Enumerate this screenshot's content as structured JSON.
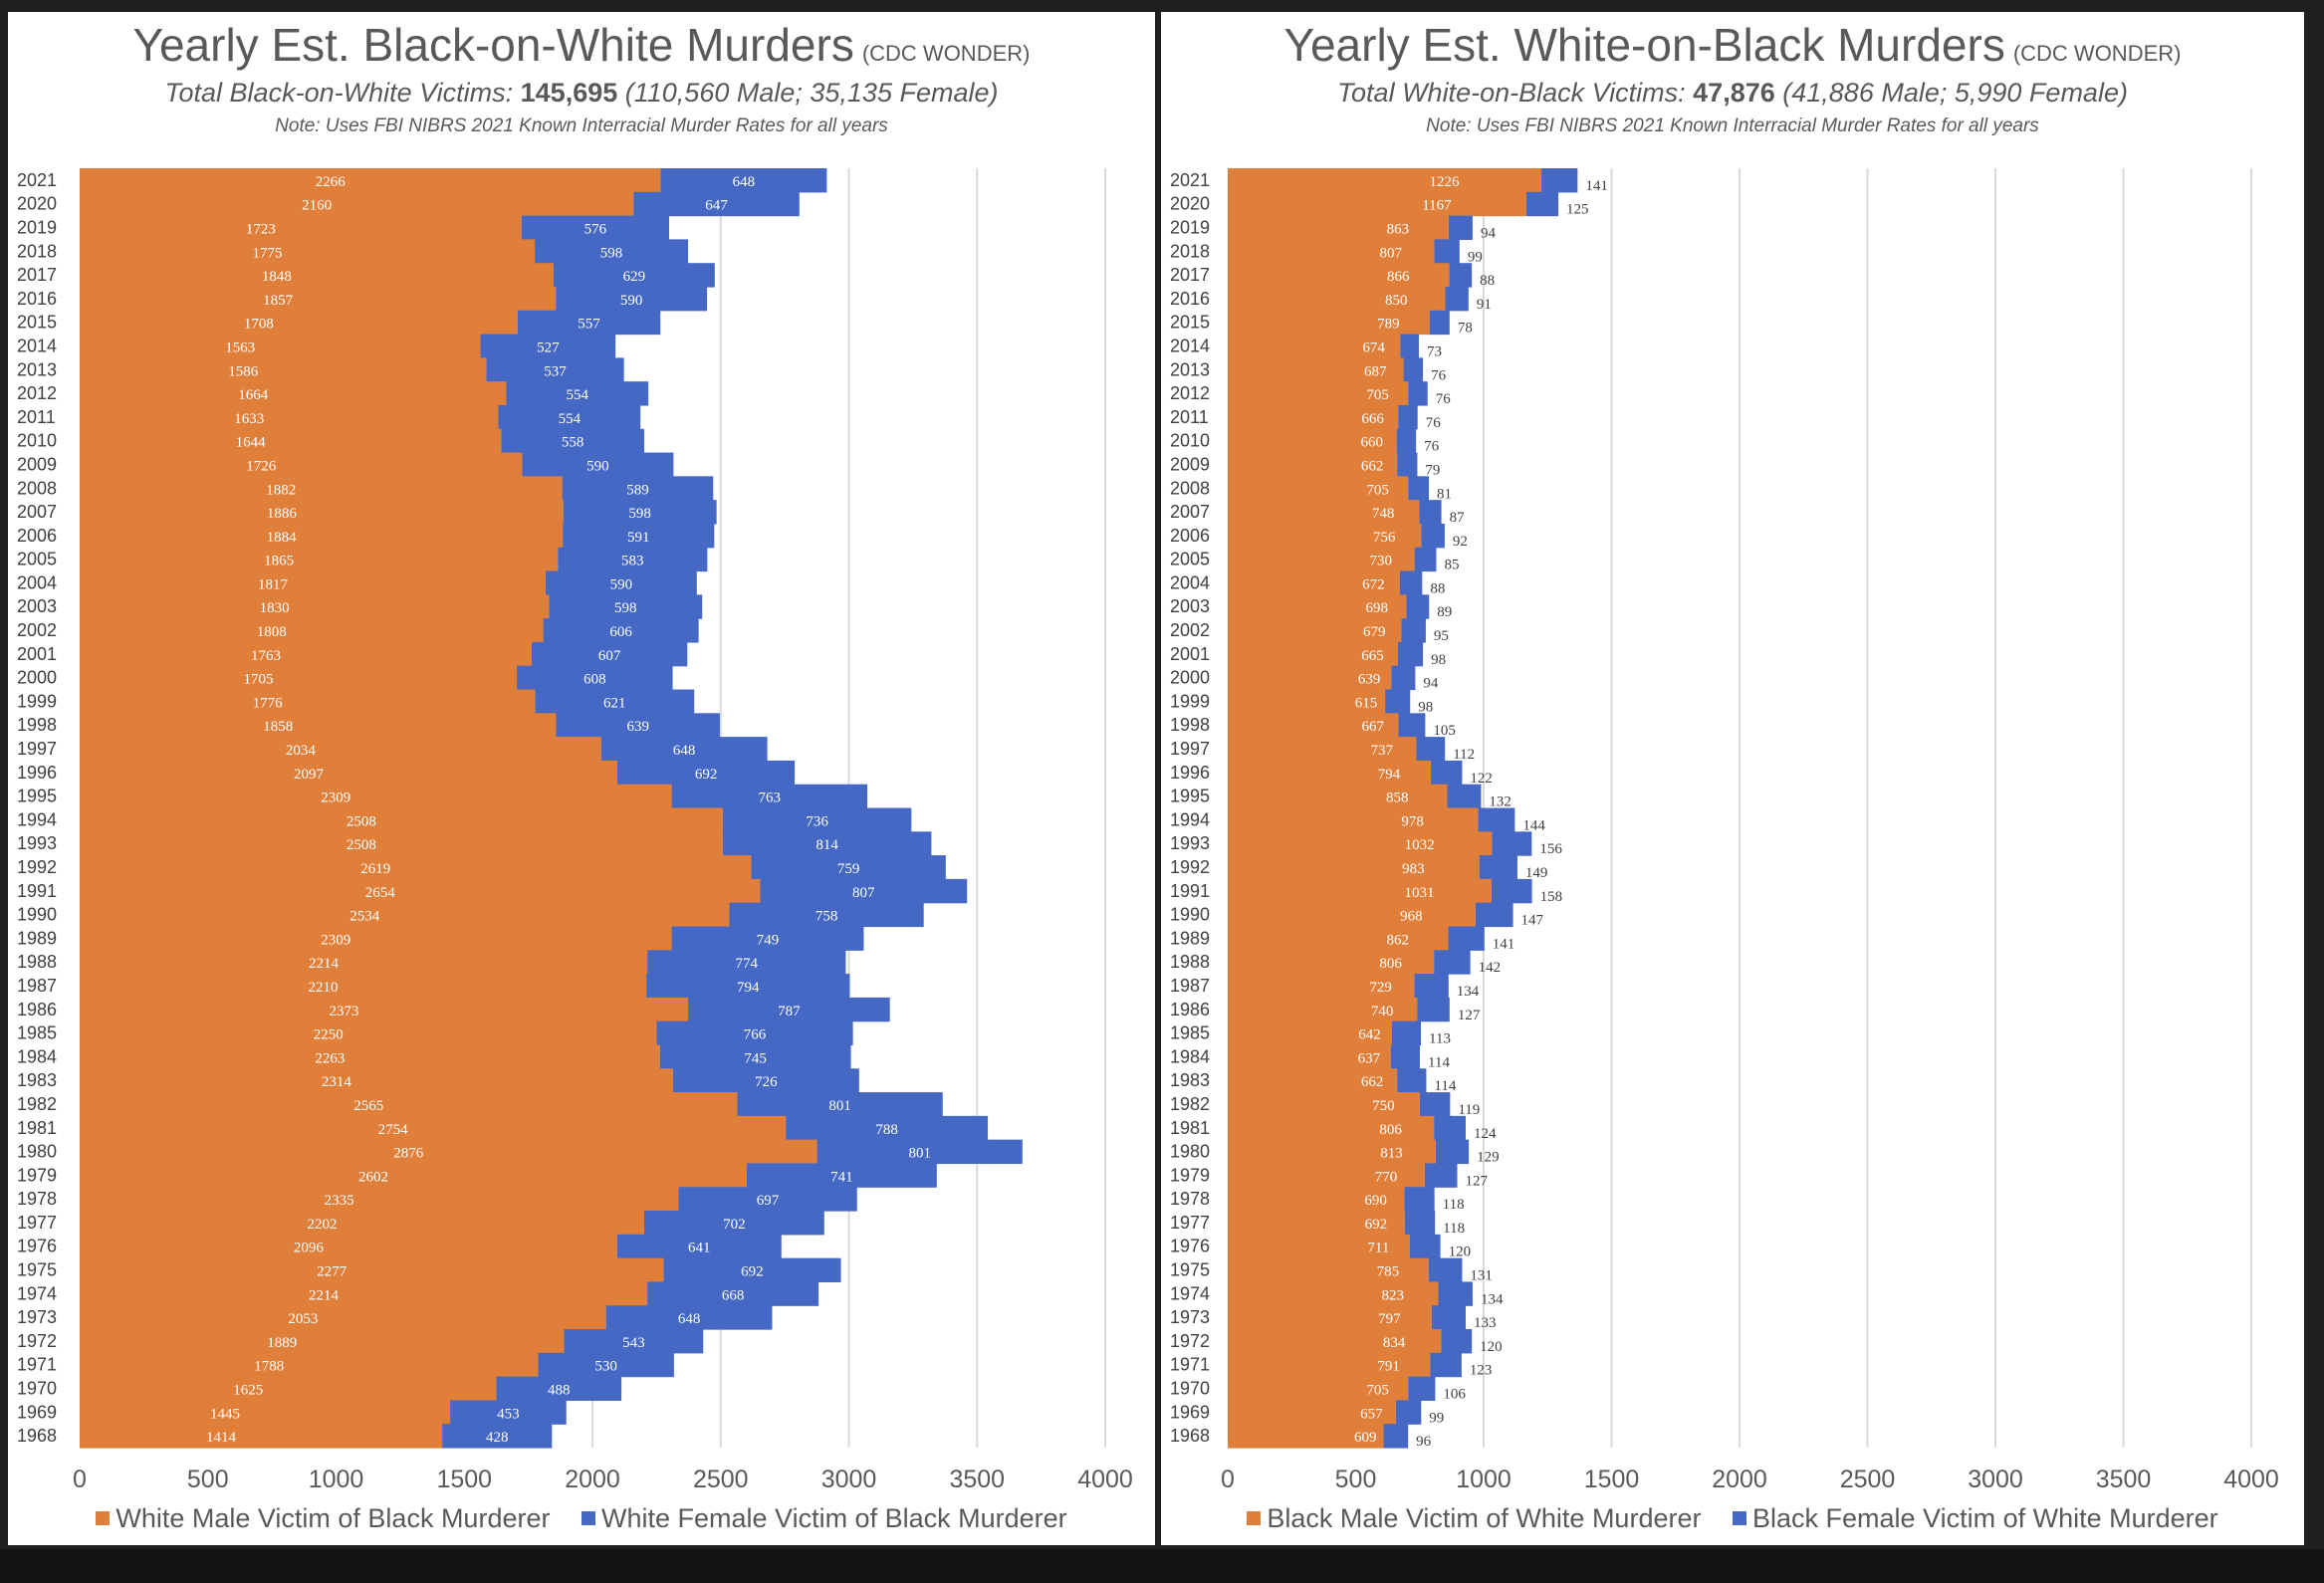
{
  "colors": {
    "orange": "#E07F3A",
    "blue": "#4468C4",
    "grid": "#D9D9D9",
    "text": "#595959"
  },
  "panels": [
    {
      "title": "Yearly Est. Black-on-White Murders",
      "source": "(CDC WONDER)",
      "subtitle_italic": "Total Black-on-White Victims:",
      "subtitle_total": "145,695",
      "subtitle_breakdown": "(110,560 Male; 35,135 Female)",
      "note": "Note: Uses FBI NIBRS 2021 Known Interracial Murder Rates for all years",
      "legend_male": "White Male Victim of Black Murderer",
      "legend_female": "White Female Victim of Black Murderer"
    },
    {
      "title": "Yearly Est. White-on-Black Murders",
      "source": "(CDC WONDER)",
      "subtitle_italic": "Total White-on-Black Victims:",
      "subtitle_total": "47,876",
      "subtitle_breakdown": "(41,886 Male; 5,990 Female)",
      "note": "Note: Uses FBI NIBRS 2021 Known Interracial Murder Rates for all years",
      "legend_male": "Black Male Victim of White Murderer",
      "legend_female": "Black Female Victim of White Murderer"
    }
  ],
  "chart_data": [
    {
      "type": "bar",
      "orientation": "horizontal",
      "stacked": true,
      "title": "Yearly Est. Black-on-White Murders",
      "xlim": [
        0,
        4000
      ],
      "xticks": [
        0,
        500,
        1000,
        1500,
        2000,
        2500,
        3000,
        3500,
        4000
      ],
      "categories": [
        "2021",
        "2020",
        "2019",
        "2018",
        "2017",
        "2016",
        "2015",
        "2014",
        "2013",
        "2012",
        "2011",
        "2010",
        "2009",
        "2008",
        "2007",
        "2006",
        "2005",
        "2004",
        "2003",
        "2002",
        "2001",
        "2000",
        "1999",
        "1998",
        "1997",
        "1996",
        "1995",
        "1994",
        "1993",
        "1992",
        "1991",
        "1990",
        "1989",
        "1988",
        "1987",
        "1986",
        "1985",
        "1984",
        "1983",
        "1982",
        "1981",
        "1980",
        "1979",
        "1978",
        "1977",
        "1976",
        "1975",
        "1974",
        "1973",
        "1972",
        "1971",
        "1970",
        "1969",
        "1968"
      ],
      "series": [
        {
          "name": "White Male Victim of Black Murderer",
          "values": [
            2266,
            2160,
            1723,
            1775,
            1848,
            1857,
            1708,
            1563,
            1586,
            1664,
            1633,
            1644,
            1726,
            1882,
            1886,
            1884,
            1865,
            1817,
            1830,
            1808,
            1763,
            1705,
            1776,
            1858,
            2034,
            2097,
            2309,
            2508,
            2508,
            2619,
            2654,
            2534,
            2309,
            2214,
            2210,
            2373,
            2250,
            2263,
            2314,
            2565,
            2754,
            2876,
            2602,
            2335,
            2202,
            2096,
            2277,
            2214,
            2053,
            1889,
            1788,
            1625,
            1445,
            1414
          ]
        },
        {
          "name": "White Female Victim of Black Murderer",
          "values": [
            648,
            647,
            576,
            598,
            629,
            590,
            557,
            527,
            537,
            554,
            554,
            558,
            590,
            589,
            598,
            591,
            583,
            590,
            598,
            606,
            607,
            608,
            621,
            639,
            648,
            692,
            763,
            736,
            814,
            759,
            807,
            758,
            749,
            774,
            794,
            787,
            766,
            745,
            726,
            801,
            788,
            801,
            741,
            697,
            702,
            641,
            692,
            668,
            648,
            543,
            530,
            488,
            453,
            428
          ]
        }
      ]
    },
    {
      "type": "bar",
      "orientation": "horizontal",
      "stacked": true,
      "title": "Yearly Est. White-on-Black Murders",
      "xlim": [
        0,
        4000
      ],
      "xticks": [
        0,
        500,
        1000,
        1500,
        2000,
        2500,
        3000,
        3500,
        4000
      ],
      "categories": [
        "2021",
        "2020",
        "2019",
        "2018",
        "2017",
        "2016",
        "2015",
        "2014",
        "2013",
        "2012",
        "2011",
        "2010",
        "2009",
        "2008",
        "2007",
        "2006",
        "2005",
        "2004",
        "2003",
        "2002",
        "2001",
        "2000",
        "1999",
        "1998",
        "1997",
        "1996",
        "1995",
        "1994",
        "1993",
        "1992",
        "1991",
        "1990",
        "1989",
        "1988",
        "1987",
        "1986",
        "1985",
        "1984",
        "1983",
        "1982",
        "1981",
        "1980",
        "1979",
        "1978",
        "1977",
        "1976",
        "1975",
        "1974",
        "1973",
        "1972",
        "1971",
        "1970",
        "1969",
        "1968"
      ],
      "series": [
        {
          "name": "Black Male Victim of White Murderer",
          "values": [
            1226,
            1167,
            863,
            807,
            866,
            850,
            789,
            674,
            687,
            705,
            666,
            660,
            662,
            705,
            748,
            756,
            730,
            672,
            698,
            679,
            665,
            639,
            615,
            667,
            737,
            794,
            858,
            978,
            1032,
            983,
            1031,
            968,
            862,
            806,
            729,
            740,
            642,
            637,
            662,
            750,
            806,
            813,
            770,
            690,
            692,
            711,
            785,
            823,
            797,
            834,
            791,
            705,
            657,
            609
          ]
        },
        {
          "name": "Black Female Victim of White Murderer",
          "values": [
            141,
            125,
            94,
            99,
            88,
            91,
            78,
            73,
            76,
            76,
            76,
            76,
            79,
            81,
            87,
            92,
            85,
            88,
            89,
            95,
            98,
            94,
            98,
            105,
            112,
            122,
            132,
            144,
            156,
            149,
            158,
            147,
            141,
            142,
            134,
            127,
            113,
            114,
            114,
            119,
            124,
            129,
            127,
            118,
            118,
            120,
            131,
            134,
            133,
            120,
            123,
            106,
            99,
            96
          ]
        }
      ]
    }
  ]
}
